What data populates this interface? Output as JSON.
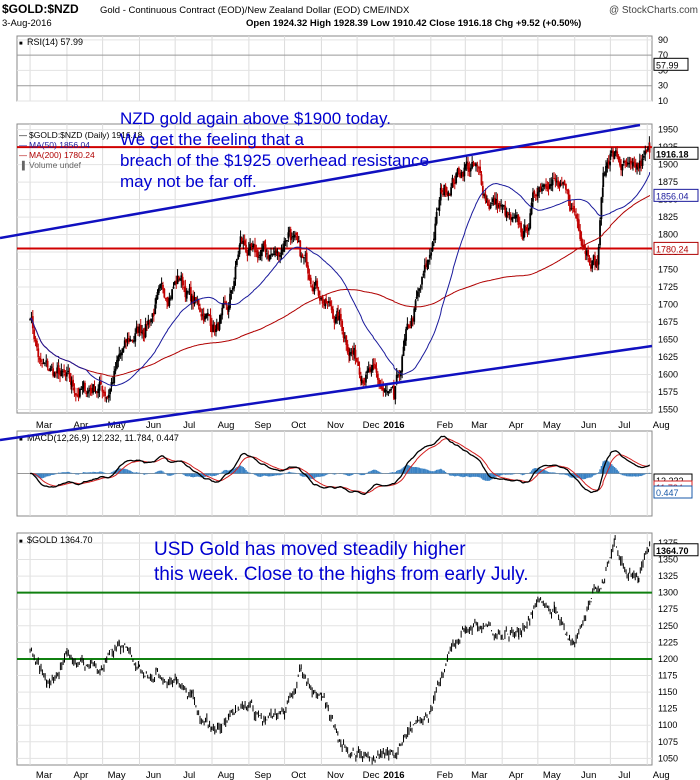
{
  "header": {
    "symbol": "$GOLD:$NZD",
    "description": "Gold - Continuous Contract (EOD)/New Zealand Dollar (EOD)  CME/INDX",
    "watermark": "@ StockCharts.com",
    "date": "3-Aug-2016",
    "ohlc": "Open 1924.32  High 1928.39  Low 1910.42  Close 1916.18  Chg +9.52 (+0.50%)"
  },
  "chart_data": [
    {
      "type": "line",
      "panel": "rsi",
      "label": "RSI(14) 57.99",
      "last_value": "57.99",
      "y_ticks": [
        "90",
        "70",
        "50",
        "30",
        "10"
      ],
      "ylim": [
        10,
        95
      ],
      "color": "#000000"
    },
    {
      "type": "candlestick",
      "panel": "nzd-price",
      "legend": [
        "$GOLD:$NZD (Daily) 1916.18",
        "MA(50) 1856.04",
        "MA(200) 1780.24",
        "Volume undef"
      ],
      "legend_colors": [
        "#000000",
        "#1a1a9c",
        "#b00000",
        "#666666"
      ],
      "last_price": "1916.18",
      "ma50_last": "1856.04",
      "ma200_last": "1780.24",
      "y_ticks": [
        "1950",
        "1925",
        "1900",
        "1875",
        "1850",
        "1825",
        "1800",
        "1775",
        "1750",
        "1725",
        "1700",
        "1675",
        "1650",
        "1625",
        "1600",
        "1575",
        "1550"
      ],
      "ylim": [
        1545,
        1958
      ],
      "resistance_levels": [
        1925,
        1780
      ],
      "annotation": "NZD gold again above $1900 today. We get the feeling that a breach of the $1925 overhead resistance may not be far off.",
      "price_path": [
        [
          "2015-03-01",
          1690
        ],
        [
          "2015-03-10",
          1610
        ],
        [
          "2015-03-25",
          1600
        ],
        [
          "2015-04-05",
          1580
        ],
        [
          "2015-04-15",
          1575
        ],
        [
          "2015-04-25",
          1585
        ],
        [
          "2015-05-05",
          1575
        ],
        [
          "2015-05-15",
          1620
        ],
        [
          "2015-05-25",
          1650
        ],
        [
          "2015-06-05",
          1670
        ],
        [
          "2015-06-15",
          1700
        ],
        [
          "2015-06-25",
          1720
        ],
        [
          "2015-07-05",
          1740
        ],
        [
          "2015-07-15",
          1705
        ],
        [
          "2015-07-25",
          1690
        ],
        [
          "2015-08-05",
          1665
        ],
        [
          "2015-08-15",
          1690
        ],
        [
          "2015-08-25",
          1790
        ],
        [
          "2015-09-05",
          1765
        ],
        [
          "2015-09-15",
          1775
        ],
        [
          "2015-09-25",
          1770
        ],
        [
          "2015-10-05",
          1810
        ],
        [
          "2015-10-15",
          1760
        ],
        [
          "2015-10-25",
          1745
        ],
        [
          "2015-11-05",
          1700
        ],
        [
          "2015-11-15",
          1680
        ],
        [
          "2015-11-25",
          1640
        ],
        [
          "2015-12-05",
          1610
        ],
        [
          "2015-12-15",
          1595
        ],
        [
          "2015-12-25",
          1570
        ],
        [
          "2016-01-01",
          1555
        ],
        [
          "2016-01-10",
          1640
        ],
        [
          "2016-01-20",
          1700
        ],
        [
          "2016-01-30",
          1760
        ],
        [
          "2016-02-10",
          1860
        ],
        [
          "2016-02-20",
          1880
        ],
        [
          "2016-03-01",
          1900
        ],
        [
          "2016-03-10",
          1890
        ],
        [
          "2016-03-20",
          1850
        ],
        [
          "2016-03-30",
          1840
        ],
        [
          "2016-04-10",
          1810
        ],
        [
          "2016-04-20",
          1800
        ],
        [
          "2016-05-01",
          1870
        ],
        [
          "2016-05-10",
          1890
        ],
        [
          "2016-05-20",
          1860
        ],
        [
          "2016-06-01",
          1830
        ],
        [
          "2016-06-10",
          1790
        ],
        [
          "2016-06-20",
          1760
        ],
        [
          "2016-06-25",
          1880
        ],
        [
          "2016-07-01",
          1920
        ],
        [
          "2016-07-10",
          1900
        ],
        [
          "2016-07-20",
          1880
        ],
        [
          "2016-08-03",
          1916
        ]
      ]
    },
    {
      "type": "line",
      "panel": "macd",
      "label": "MACD(12,26,9) 12.232, 11.784, 0.447",
      "values": [
        "12.232",
        "11.784",
        "0.447"
      ],
      "colors": [
        "#000000",
        "#d42020",
        "#1a5aa8"
      ],
      "ylim": [
        -40,
        40
      ]
    },
    {
      "type": "line",
      "panel": "usd-price",
      "label": "$GOLD 1364.70",
      "last_price": "1364.70",
      "y_ticks": [
        "1375",
        "1350",
        "1325",
        "1300",
        "1275",
        "1250",
        "1225",
        "1200",
        "1175",
        "1150",
        "1125",
        "1100",
        "1075",
        "1050"
      ],
      "ylim": [
        1040,
        1390
      ],
      "support_levels": [
        1300,
        1200
      ],
      "annotation": "USD Gold has moved steadily higher this week. Close to the highs from early July.",
      "price_path": [
        [
          "2015-03-01",
          1215
        ],
        [
          "2015-03-15",
          1165
        ],
        [
          "2015-04-01",
          1200
        ],
        [
          "2015-04-15",
          1195
        ],
        [
          "2015-05-01",
          1185
        ],
        [
          "2015-05-15",
          1220
        ],
        [
          "2015-06-01",
          1190
        ],
        [
          "2015-06-15",
          1180
        ],
        [
          "2015-07-01",
          1170
        ],
        [
          "2015-07-15",
          1140
        ],
        [
          "2015-08-01",
          1090
        ],
        [
          "2015-08-15",
          1120
        ],
        [
          "2015-09-01",
          1130
        ],
        [
          "2015-09-15",
          1105
        ],
        [
          "2015-10-01",
          1115
        ],
        [
          "2015-10-15",
          1180
        ],
        [
          "2015-11-01",
          1140
        ],
        [
          "2015-11-15",
          1080
        ],
        [
          "2015-12-01",
          1060
        ],
        [
          "2015-12-15",
          1050
        ],
        [
          "2016-01-01",
          1065
        ],
        [
          "2016-01-15",
          1095
        ],
        [
          "2016-02-01",
          1120
        ],
        [
          "2016-02-15",
          1210
        ],
        [
          "2016-03-01",
          1240
        ],
        [
          "2016-03-15",
          1255
        ],
        [
          "2016-04-01",
          1235
        ],
        [
          "2016-04-15",
          1240
        ],
        [
          "2016-05-01",
          1285
        ],
        [
          "2016-05-15",
          1275
        ],
        [
          "2016-06-01",
          1215
        ],
        [
          "2016-06-15",
          1285
        ],
        [
          "2016-06-25",
          1320
        ],
        [
          "2016-07-05",
          1365
        ],
        [
          "2016-07-15",
          1330
        ],
        [
          "2016-07-25",
          1320
        ],
        [
          "2016-08-03",
          1364
        ]
      ]
    }
  ],
  "x_axis_labels": [
    "Mar",
    "Apr",
    "May",
    "Jun",
    "Jul",
    "Aug",
    "Sep",
    "Oct",
    "Nov",
    "Dec",
    "2016",
    "Feb",
    "Mar",
    "Apr",
    "May",
    "Jun",
    "Jul",
    "Aug"
  ],
  "x_axis_dates": [
    "2015-03-01",
    "2015-04-01",
    "2015-05-01",
    "2015-06-01",
    "2015-07-01",
    "2015-08-01",
    "2015-09-01",
    "2015-10-01",
    "2015-11-01",
    "2015-12-01",
    "2016-01-01",
    "2016-02-01",
    "2016-03-01",
    "2016-04-01",
    "2016-05-01",
    "2016-06-01",
    "2016-07-01",
    "2016-08-01"
  ]
}
